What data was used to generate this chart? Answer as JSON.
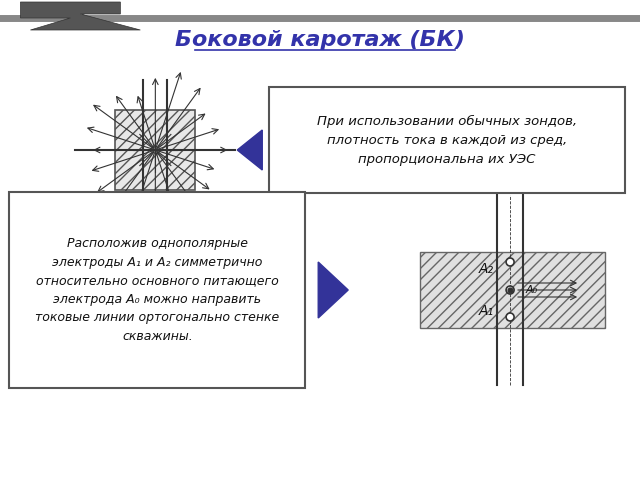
{
  "title": "Боковой каротаж (БК)",
  "title_color": "#3333aa",
  "title_fontsize": 16,
  "box1_text": "При использовании обычных зондов,\nплотность тока в каждой из сред,\nпропорциональна их УЭС",
  "box2_text": "Расположив однополярные\nэлектроды A₁ и A₂ симметрично\nотносительно основного питающего\nэлектрода A₀ можно направить\nтоковые линии ортогонально стенке\nскважины.",
  "label_A1": "A₁",
  "label_A2": "A₂",
  "label_A0": "A₀",
  "arrow_color": "#333399",
  "hatch_color": "#888888",
  "diagram_color": "#404040"
}
